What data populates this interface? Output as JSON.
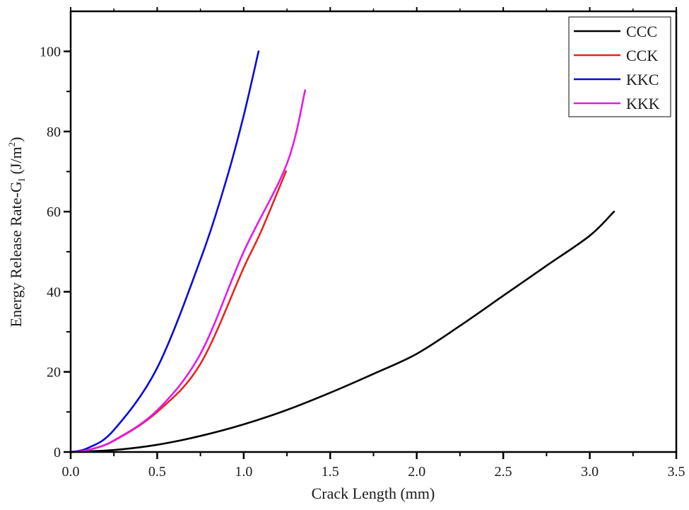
{
  "chart_data": {
    "type": "line",
    "title": "",
    "xlabel": "Crack Length (mm)",
    "ylabel": "Energy Release Rate-G",
    "ylabel_subscript": "I",
    "ylabel_units_prefix": " (J/m",
    "ylabel_units_sup": "2",
    "ylabel_units_suffix": ")",
    "xlim": [
      0.0,
      3.5
    ],
    "ylim": [
      0,
      110
    ],
    "xticks": [
      "0.0",
      "0.5",
      "1.0",
      "1.5",
      "2.0",
      "2.5",
      "3.0",
      "3.5"
    ],
    "xtick_values": [
      0.0,
      0.5,
      1.0,
      1.5,
      2.0,
      2.5,
      3.0,
      3.5
    ],
    "yticks": [
      "0",
      "20",
      "40",
      "60",
      "80",
      "100"
    ],
    "ytick_values": [
      0,
      20,
      40,
      60,
      80,
      100
    ],
    "grid": false,
    "legend_position": "upper right",
    "series": [
      {
        "name": "CCC",
        "color": "#000000",
        "x": [
          0.0,
          0.25,
          0.5,
          0.75,
          1.0,
          1.25,
          1.5,
          1.75,
          2.0,
          2.25,
          2.5,
          2.75,
          3.0,
          3.14
        ],
        "y": [
          0.0,
          0.5,
          1.8,
          4.0,
          6.9,
          10.5,
          14.8,
          19.5,
          24.5,
          31.5,
          39.0,
          46.5,
          54.0,
          60.0
        ]
      },
      {
        "name": "CCK",
        "color": "#e8261c",
        "x": [
          0.0,
          0.1,
          0.25,
          0.5,
          0.75,
          1.0,
          1.1,
          1.245
        ],
        "y": [
          0.0,
          0.5,
          2.8,
          10.0,
          22.0,
          46.0,
          55.0,
          70.1
        ]
      },
      {
        "name": "KKC",
        "color": "#0b0bd9",
        "x": [
          0.0,
          0.1,
          0.25,
          0.5,
          0.75,
          0.9,
          1.0,
          1.086
        ],
        "y": [
          0.0,
          1.0,
          5.5,
          21.0,
          48.0,
          68.0,
          84.0,
          100.0
        ]
      },
      {
        "name": "KKK",
        "color": "#e619e6",
        "x": [
          0.0,
          0.1,
          0.25,
          0.5,
          0.75,
          1.0,
          1.25,
          1.355
        ],
        "y": [
          0.0,
          0.5,
          2.9,
          10.4,
          24.5,
          50.0,
          72.0,
          90.3
        ]
      }
    ]
  }
}
